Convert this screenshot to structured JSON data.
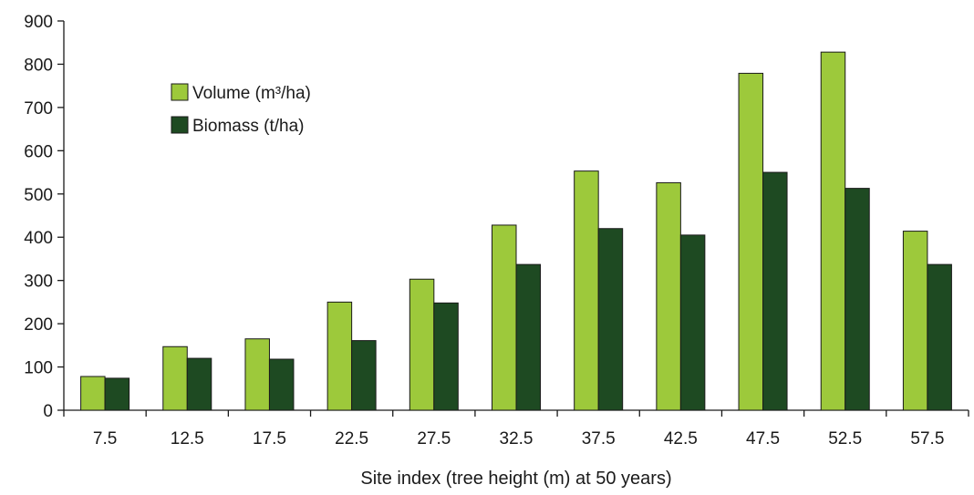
{
  "chart_data": {
    "type": "bar",
    "title": "",
    "xlabel": "Site index (tree height (m) at 50 years)",
    "ylabel": "",
    "ylim": [
      0,
      900
    ],
    "yticks": [
      0,
      100,
      200,
      300,
      400,
      500,
      600,
      700,
      800,
      900
    ],
    "categories": [
      "7.5",
      "12.5",
      "17.5",
      "22.5",
      "27.5",
      "32.5",
      "37.5",
      "42.5",
      "47.5",
      "52.5",
      "57.5"
    ],
    "series": [
      {
        "name": "Volume (m³/ha)",
        "color": "#9dc93b",
        "values": [
          78,
          147,
          165,
          250,
          303,
          428,
          553,
          526,
          779,
          828,
          414
        ]
      },
      {
        "name": "Biomass (t/ha)",
        "color": "#1e4a22",
        "values": [
          74,
          120,
          118,
          161,
          248,
          337,
          420,
          405,
          550,
          513,
          337
        ]
      }
    ],
    "legend_position": "top-left",
    "grid": false
  }
}
